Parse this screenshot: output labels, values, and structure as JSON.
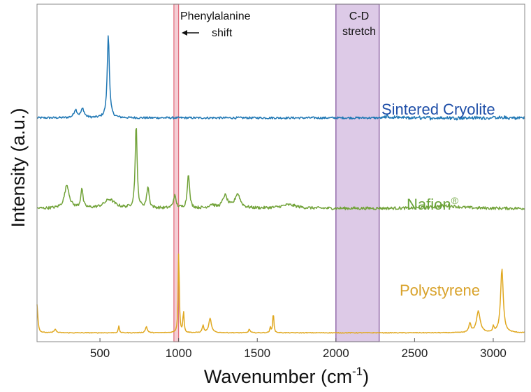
{
  "chart_data": {
    "type": "line",
    "title": "",
    "xlabel": "Wavenumber (cm",
    "xlabel_sup": "-1",
    "xlabel_close": ")",
    "ylabel": "Intensity (a.u.)",
    "xlim": [
      100,
      3200
    ],
    "x_ticks": [
      500,
      1000,
      1500,
      2000,
      2500,
      3000
    ],
    "y_ticks": "none",
    "grid": false,
    "series": [
      {
        "name": "Sintered Cryolite",
        "color": "#1f77b4",
        "label_color": "#1f4fa8",
        "baseline_intensity": 0.26,
        "noise": 0.006,
        "peaks": [
          {
            "x": 345,
            "height": 0.045,
            "width": 12
          },
          {
            "x": 390,
            "height": 0.05,
            "width": 12
          },
          {
            "x": 553,
            "height": 0.47,
            "width": 8
          },
          {
            "x": 2325,
            "height": 0.02,
            "width": 5
          }
        ]
      },
      {
        "name": "Nafion",
        "trademark": "®",
        "color": "#72a33a",
        "label_color": "#6aa33a",
        "baseline_intensity": -0.25,
        "noise": 0.008,
        "peaks": [
          {
            "x": 290,
            "height": 0.13,
            "width": 18
          },
          {
            "x": 385,
            "height": 0.11,
            "width": 8
          },
          {
            "x": 560,
            "height": 0.05,
            "width": 40
          },
          {
            "x": 730,
            "height": 0.48,
            "width": 7
          },
          {
            "x": 805,
            "height": 0.12,
            "width": 9
          },
          {
            "x": 975,
            "height": 0.07,
            "width": 10
          },
          {
            "x": 1062,
            "height": 0.2,
            "width": 8
          },
          {
            "x": 1210,
            "height": 0.02,
            "width": 20
          },
          {
            "x": 1295,
            "height": 0.07,
            "width": 18
          },
          {
            "x": 1375,
            "height": 0.08,
            "width": 20
          },
          {
            "x": 1700,
            "height": 0.02,
            "width": 60
          },
          {
            "x": 2700,
            "height": 0.015,
            "width": 100
          }
        ]
      },
      {
        "name": "Polystyrene",
        "color": "#e0a820",
        "label_color": "#d9a32c",
        "baseline_intensity": -0.95,
        "noise": 0.002,
        "peaks": [
          {
            "x": 100,
            "height": 0.16,
            "width": 6
          },
          {
            "x": 215,
            "height": 0.02,
            "width": 8
          },
          {
            "x": 620,
            "height": 0.04,
            "width": 4
          },
          {
            "x": 795,
            "height": 0.035,
            "width": 7
          },
          {
            "x": 1001,
            "height": 0.47,
            "width": 4
          },
          {
            "x": 1031,
            "height": 0.12,
            "width": 4
          },
          {
            "x": 1155,
            "height": 0.04,
            "width": 6
          },
          {
            "x": 1200,
            "height": 0.08,
            "width": 10
          },
          {
            "x": 1450,
            "height": 0.02,
            "width": 6
          },
          {
            "x": 1583,
            "height": 0.03,
            "width": 4
          },
          {
            "x": 1602,
            "height": 0.12,
            "width": 4
          },
          {
            "x": 2852,
            "height": 0.05,
            "width": 8
          },
          {
            "x": 2905,
            "height": 0.12,
            "width": 14
          },
          {
            "x": 3001,
            "height": 0.03,
            "width": 5
          },
          {
            "x": 3055,
            "height": 0.36,
            "width": 10
          }
        ]
      }
    ],
    "y_range": [
      -1.0,
      0.9
    ],
    "highlight_bands": [
      {
        "name": "Phenylalanine shift",
        "x_start": 970,
        "x_end": 1000,
        "fill": "#f2c4cc",
        "stroke": "#e06a7a"
      },
      {
        "name": "C-D stretch",
        "x_start": 2000,
        "x_end": 2275,
        "fill": "#d7c1e3",
        "stroke": "#7a4a96"
      }
    ],
    "annotations": [
      {
        "text_line1": "Phenylalanine",
        "text_line2": "shift",
        "arrow": "left"
      },
      {
        "text_line1": "C-D",
        "text_line2": "stretch"
      }
    ]
  }
}
